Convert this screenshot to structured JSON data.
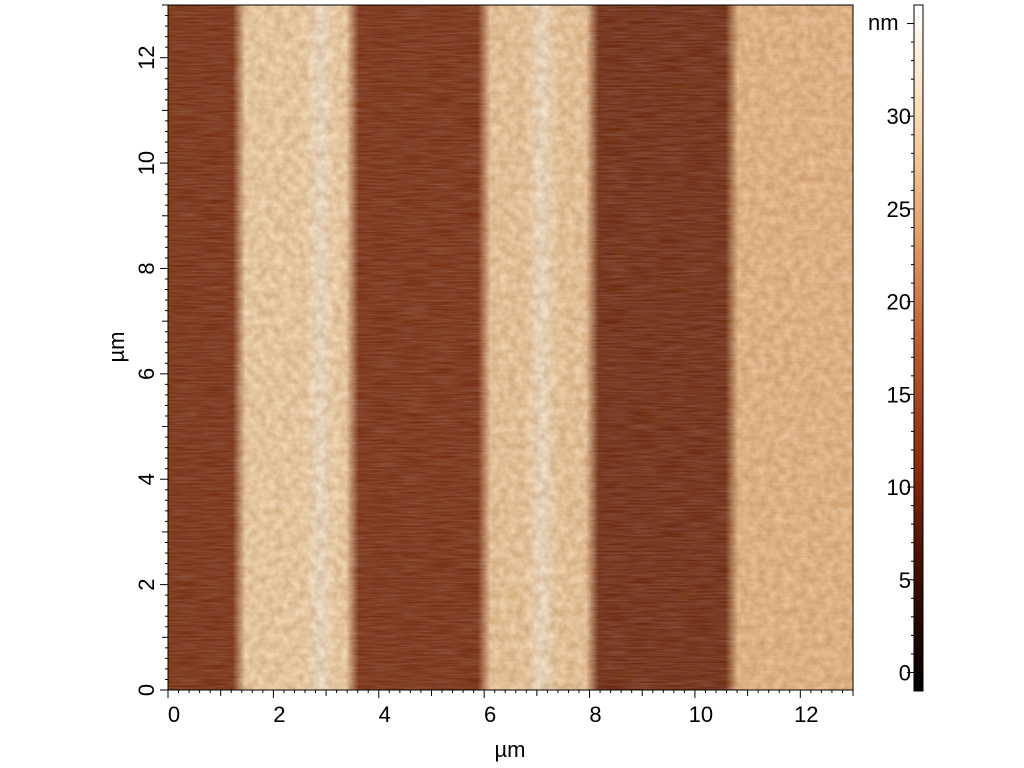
{
  "chart_data": {
    "type": "heatmap",
    "title": "",
    "xlabel": "µm",
    "ylabel": "µm",
    "xlim": [
      0,
      13
    ],
    "ylim": [
      0,
      13
    ],
    "x_ticks": [
      0,
      2,
      4,
      6,
      8,
      10,
      12
    ],
    "y_ticks": [
      0,
      2,
      4,
      6,
      8,
      10,
      12
    ],
    "colorbar": {
      "label": "nm",
      "range": [
        -1,
        36
      ],
      "ticks": [
        0,
        5,
        10,
        15,
        20,
        25,
        30
      ],
      "colormap": "afm-hot",
      "stops": [
        "#000000",
        "#3c0d02",
        "#8c2a0c",
        "#bd5a2e",
        "#e3a06a",
        "#f8dab0",
        "#ffffff"
      ]
    },
    "height_profile": {
      "description_units": "x position in µm vs mean height in nm",
      "stripe_bands": [
        {
          "x_start": 0.0,
          "x_end": 1.35,
          "height": 9
        },
        {
          "x_start": 1.35,
          "x_end": 3.5,
          "height": 30
        },
        {
          "x_start": 3.5,
          "x_end": 6.0,
          "height": 9
        },
        {
          "x_start": 6.0,
          "x_end": 8.05,
          "height": 29
        },
        {
          "x_start": 8.05,
          "x_end": 10.7,
          "height": 8
        },
        {
          "x_start": 10.7,
          "x_end": 13.0,
          "height": 27
        }
      ],
      "peak_lines": [
        {
          "x": 2.9,
          "height": 33
        },
        {
          "x": 7.1,
          "height": 33
        }
      ]
    }
  }
}
